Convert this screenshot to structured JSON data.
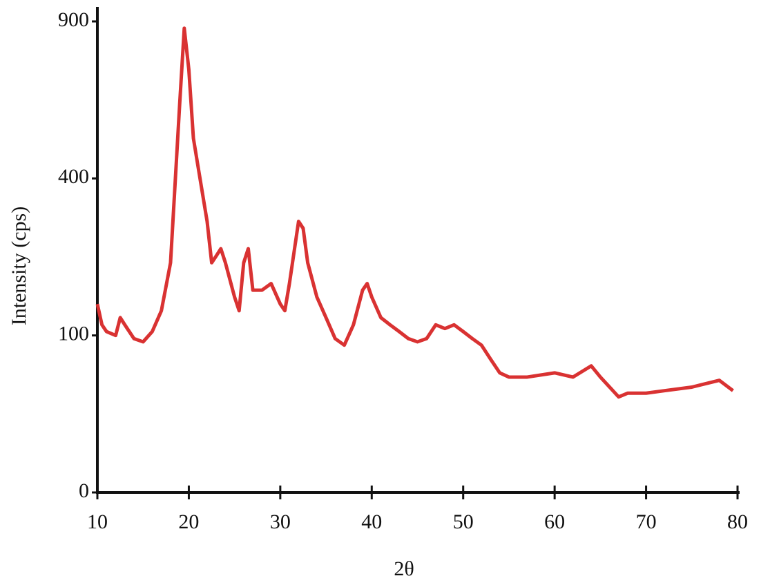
{
  "chart_data": {
    "type": "line",
    "x_label": "2θ",
    "y_label": "Intensity (cps)",
    "yscale": "sqrt",
    "xlim": [
      10,
      80
    ],
    "xticks": [
      10,
      20,
      30,
      40,
      50,
      60,
      70,
      80
    ],
    "ylim": [
      0,
      900
    ],
    "yticks": [
      0,
      100,
      400,
      900
    ],
    "series": [
      {
        "color": "#d93232",
        "x": [
          10,
          10.5,
          11,
          12,
          12.5,
          13,
          14,
          15,
          16,
          17,
          18,
          19,
          19.5,
          20,
          20.5,
          21,
          22,
          22.5,
          23,
          23.5,
          24,
          25,
          25.5,
          26,
          26.5,
          27,
          28,
          29,
          30,
          30.5,
          31,
          32,
          32.5,
          33,
          34,
          35,
          36,
          37,
          38,
          39,
          39.5,
          40,
          41,
          42,
          43,
          44,
          45,
          46,
          47,
          48,
          49,
          50,
          51,
          52,
          53,
          54,
          55,
          57,
          60,
          62,
          64,
          65,
          67,
          68,
          70,
          72,
          75,
          78,
          79.5
        ],
        "values": [
          144,
          114,
          105,
          100,
          124,
          114,
          96,
          92,
          105,
          134,
          214,
          612,
          874,
          726,
          509,
          432,
          298,
          214,
          227,
          241,
          214,
          155,
          134,
          214,
          241,
          166,
          166,
          177,
          144,
          134,
          177,
          298,
          283,
          214,
          155,
          124,
          96,
          88,
          114,
          166,
          177,
          155,
          124,
          114,
          105,
          96,
          92,
          96,
          114,
          109,
          114,
          105,
          96,
          88,
          72,
          58,
          54,
          54,
          58,
          54,
          65,
          54,
          37,
          40,
          40,
          42,
          45,
          51,
          42
        ]
      }
    ]
  }
}
